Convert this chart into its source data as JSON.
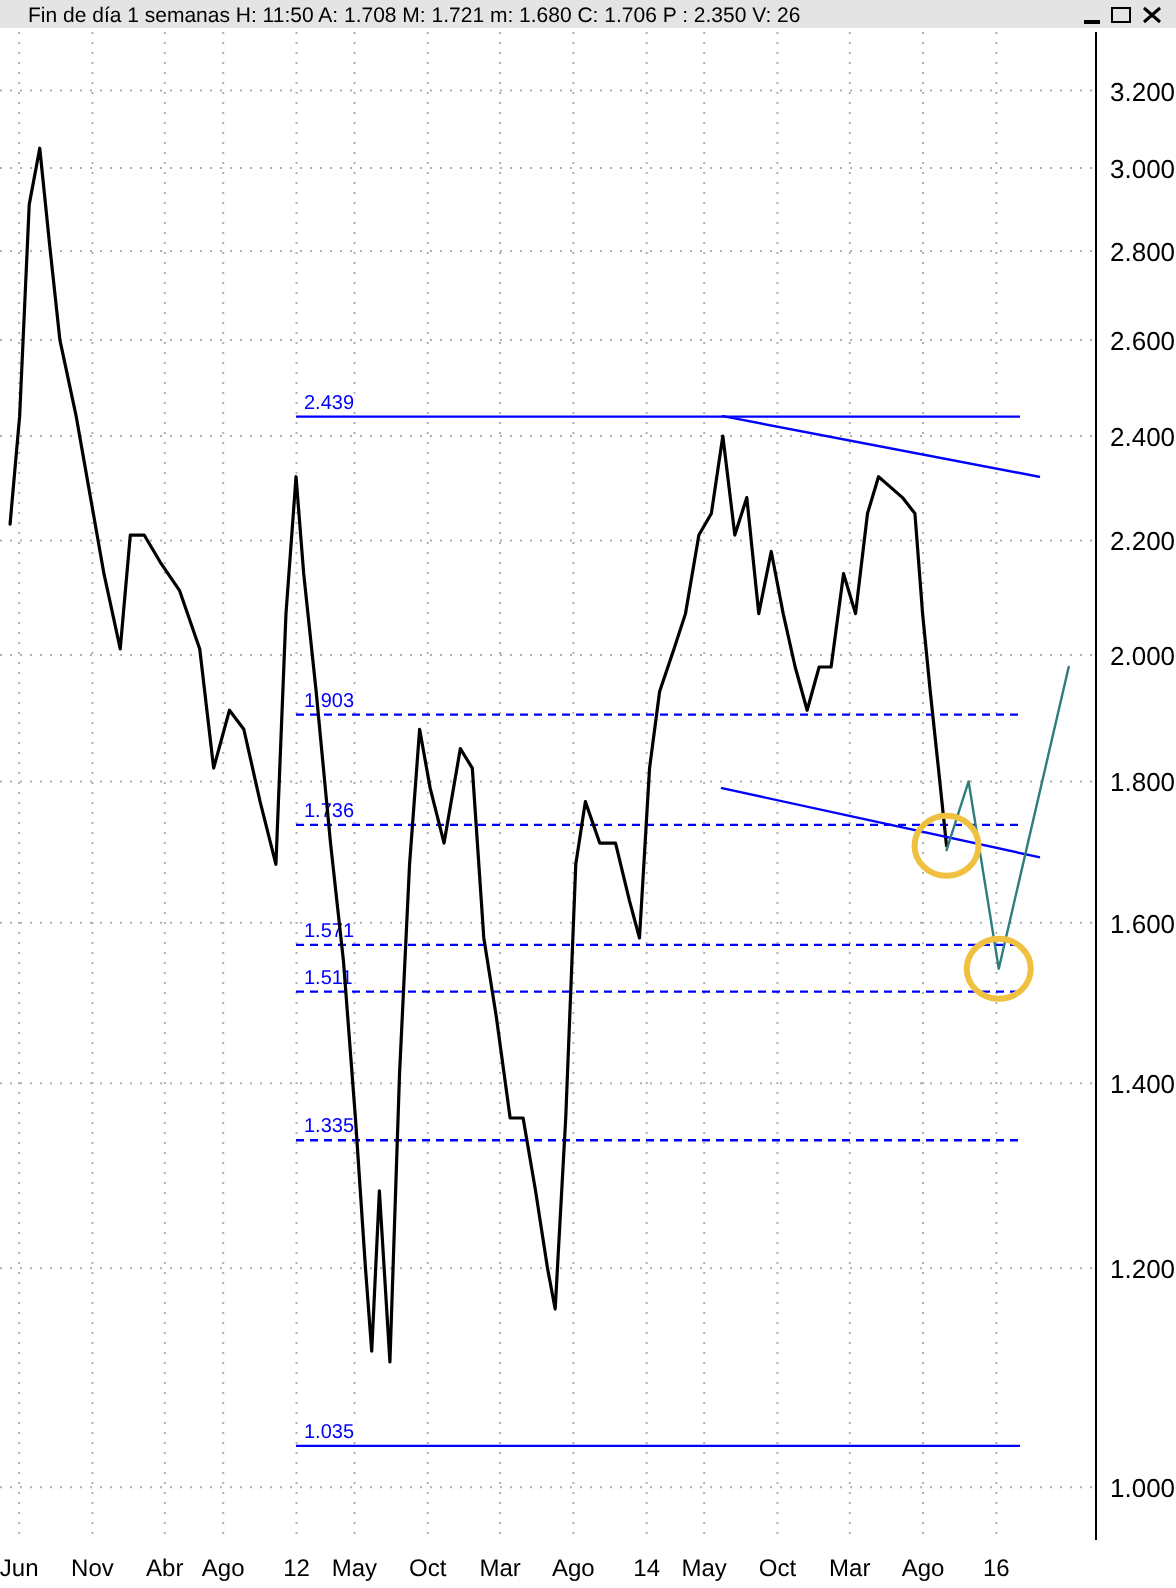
{
  "chart_data": {
    "type": "line",
    "title": "Fin de día 1 semanas  H: 11:50  A: 1.708  M: 1.721  m: 1.680  C: 1.706  P : 2.350  V: 26",
    "log": "y",
    "grid": true,
    "xlim": [
      "2010-04-22",
      "2016-07-27"
    ],
    "xticks": [
      {
        "value": "2010-06-01",
        "label": "Jun"
      },
      {
        "value": "2010-11-01",
        "label": "Nov"
      },
      {
        "value": "2011-04-01",
        "label": "Abr"
      },
      {
        "value": "2011-08-01",
        "label": "Ago"
      },
      {
        "value": "2012-01-01",
        "label": "12"
      },
      {
        "value": "2012-05-01",
        "label": "May"
      },
      {
        "value": "2012-10-01",
        "label": "Oct"
      },
      {
        "value": "2013-03-01",
        "label": "Mar"
      },
      {
        "value": "2013-08-01",
        "label": "Ago"
      },
      {
        "value": "2014-01-01",
        "label": "14"
      },
      {
        "value": "2014-05-01",
        "label": "May"
      },
      {
        "value": "2014-10-01",
        "label": "Oct"
      },
      {
        "value": "2015-03-01",
        "label": "Mar"
      },
      {
        "value": "2015-08-01",
        "label": "Ago"
      },
      {
        "value": "2016-01-01",
        "label": "16"
      }
    ],
    "ylim": [
      0.957,
      3.36
    ],
    "yticks": [
      {
        "value": 1,
        "label": "1.000"
      },
      {
        "value": 1.2,
        "label": "1.200"
      },
      {
        "value": 1.4,
        "label": "1.400"
      },
      {
        "value": 1.6,
        "label": "1.600"
      },
      {
        "value": 1.8,
        "label": "1.800"
      },
      {
        "value": 2,
        "label": "2.000"
      },
      {
        "value": 2.2,
        "label": "2.200"
      },
      {
        "value": 2.4,
        "label": "2.400"
      },
      {
        "value": 2.6,
        "label": "2.600"
      },
      {
        "value": 2.8,
        "label": "2.800"
      },
      {
        "value": 3,
        "label": "3.000"
      },
      {
        "value": 3.2,
        "label": "3.200"
      }
    ],
    "series": [
      {
        "color": "#000000",
        "x": [
          "2010-05-13",
          "2010-06-02",
          "2010-06-22",
          "2010-07-14",
          "2010-08-04",
          "2010-08-25",
          "2010-09-28",
          "2010-10-28",
          "2010-11-25",
          "2010-12-29",
          "2011-01-19",
          "2011-02-17",
          "2011-03-23",
          "2011-05-02",
          "2011-06-13",
          "2011-07-12",
          "2011-08-14",
          "2011-09-13",
          "2011-10-17",
          "2011-11-19",
          "2011-12-10",
          "2011-12-31",
          "2012-01-16",
          "2012-02-11",
          "2012-03-12",
          "2012-04-08",
          "2012-05-03",
          "2012-05-24",
          "2012-06-06",
          "2012-06-22",
          "2012-07-14",
          "2012-08-03",
          "2012-08-24",
          "2012-09-14",
          "2012-10-06",
          "2012-11-04",
          "2012-12-08",
          "2013-01-02",
          "2013-01-26",
          "2013-02-21",
          "2013-03-22",
          "2013-04-18",
          "2013-05-14",
          "2013-06-08",
          "2013-06-24",
          "2013-07-16",
          "2013-08-06",
          "2013-08-26",
          "2013-09-25",
          "2013-10-28",
          "2013-11-26",
          "2013-12-17",
          "2014-01-07",
          "2014-01-28",
          "2014-02-27",
          "2014-03-23",
          "2014-04-20",
          "2014-05-16",
          "2014-06-09",
          "2014-07-04",
          "2014-07-29",
          "2014-08-23",
          "2014-09-18",
          "2014-10-13",
          "2014-11-07",
          "2014-12-02",
          "2014-12-27",
          "2015-01-21",
          "2015-02-16",
          "2015-03-13",
          "2015-04-07",
          "2015-04-30",
          "2015-05-25",
          "2015-06-19",
          "2015-07-15",
          "2015-07-31",
          "2015-08-16",
          "2015-09-02",
          "2015-09-19"
        ],
        "values": [
          2.23,
          2.44,
          2.91,
          3.05,
          2.81,
          2.6,
          2.44,
          2.28,
          2.14,
          2.01,
          2.21,
          2.21,
          2.16,
          2.11,
          2.01,
          1.82,
          1.91,
          1.88,
          1.77,
          1.68,
          2.07,
          2.32,
          2.14,
          1.94,
          1.71,
          1.55,
          1.36,
          1.2,
          1.12,
          1.28,
          1.11,
          1.41,
          1.68,
          1.88,
          1.79,
          1.71,
          1.85,
          1.82,
          1.58,
          1.48,
          1.36,
          1.36,
          1.28,
          1.2,
          1.16,
          1.36,
          1.68,
          1.77,
          1.71,
          1.71,
          1.63,
          1.58,
          1.82,
          1.94,
          2.01,
          2.07,
          2.21,
          2.25,
          2.4,
          2.21,
          2.28,
          2.07,
          2.18,
          2.07,
          1.98,
          1.91,
          1.98,
          1.98,
          2.14,
          2.07,
          2.25,
          2.32,
          2.3,
          2.28,
          2.25,
          2.07,
          1.94,
          1.82,
          1.706
        ]
      },
      {
        "color": "#0000ff",
        "x": [
          "2014-06-09",
          "2016-03-30"
        ],
        "values": [
          2.44,
          2.32
        ]
      },
      {
        "color": "#0000ff",
        "x": [
          "2014-06-07",
          "2016-03-30"
        ],
        "values": [
          1.79,
          1.69
        ]
      },
      {
        "color": "#2e7d7d",
        "x": [
          "2015-09-19",
          "2015-11-04",
          "2016-01-06",
          "2016-05-31"
        ],
        "values": [
          1.7,
          1.8,
          1.54,
          1.98
        ]
      }
    ],
    "ref_lines": [
      {
        "axis": "y",
        "value": 2.439,
        "label": "2.439",
        "color": "#0000ff",
        "line_style": "solid"
      },
      {
        "axis": "y",
        "value": 1.903,
        "label": "1.903",
        "color": "#0000ff",
        "line_style": "dashed"
      },
      {
        "axis": "y",
        "value": 1.736,
        "label": "1.736",
        "color": "#0000ff",
        "line_style": "dashed"
      },
      {
        "axis": "y",
        "value": 1.571,
        "label": "1.571",
        "color": "#0000ff",
        "line_style": "dashed"
      },
      {
        "axis": "y",
        "value": 1.511,
        "label": "1.511",
        "color": "#0000ff",
        "line_style": "dashed"
      },
      {
        "axis": "y",
        "value": 1.335,
        "label": "1.335",
        "color": "#0000ff",
        "line_style": "dashed"
      },
      {
        "axis": "y",
        "value": 1.035,
        "label": "1.035",
        "color": "#0000ff",
        "line_style": "solid"
      }
    ]
  }
}
